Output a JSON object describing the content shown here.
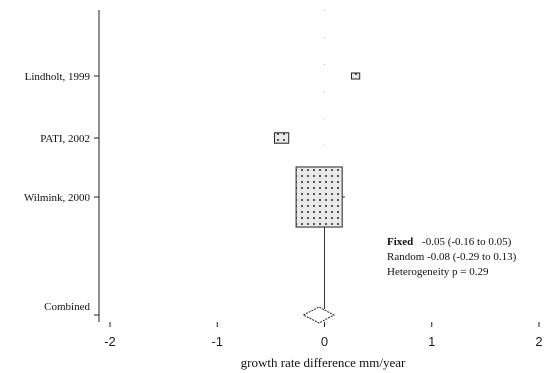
{
  "chart_data": {
    "type": "forest",
    "xlabel": "growth rate difference mm/year",
    "xlim": [
      -2,
      2
    ],
    "xticks": [
      -2,
      -1,
      0,
      1,
      2
    ],
    "xtick_labels": [
      "-2",
      "-1",
      "0",
      "1",
      "2"
    ],
    "studies": [
      {
        "label": "Lindholt, 1999",
        "estimate": 0.29,
        "ci_low": 0.27,
        "ci_high": 0.31,
        "weight": 0.3
      },
      {
        "label": "PATI, 2002",
        "estimate": -0.4,
        "ci_low": -0.46,
        "ci_high": -0.34,
        "weight": 0.9
      },
      {
        "label": "Wilmink, 2000",
        "estimate": -0.05,
        "ci_low": -0.24,
        "ci_high": 0.19,
        "weight": 8.5
      }
    ],
    "combined": {
      "label": "Combined",
      "estimate": -0.05,
      "ci_low": -0.16,
      "ci_high": 0.05
    },
    "null_line": 0,
    "summary": {
      "fixed_label": "Fixed",
      "fixed_text": "-0.05 (-0.16 to 0.05)",
      "random_text": "Random -0.08 (-0.29 to 0.13)",
      "heterogeneity_text": "Heterogeneity p = 0.29"
    }
  }
}
